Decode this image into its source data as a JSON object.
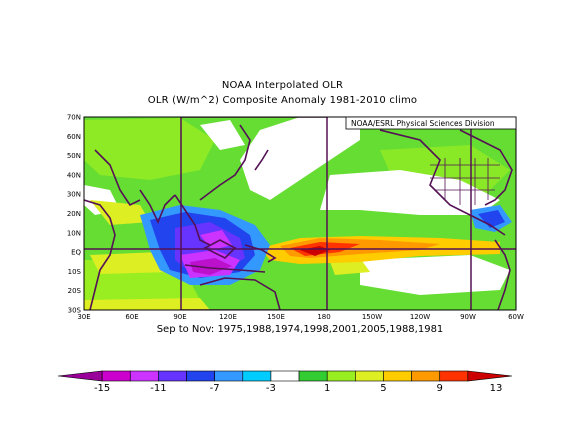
{
  "title": "NOAA Interpolated OLR",
  "subtitle": "OLR (W/m^2) Composite Anomaly 1981-2010 climo",
  "credit": "NOAA/ESRL Physical Sciences Division",
  "caption": "Sep to Nov: 1975,1988,1974,1998,2001,2005,1988,1981",
  "lat_labels": [
    "70N",
    "60N",
    "50N",
    "40N",
    "30N",
    "20N",
    "10N",
    "EQ",
    "10S",
    "20S",
    "30S"
  ],
  "lon_labels": [
    "30E",
    "60E",
    "90E",
    "120E",
    "150E",
    "180",
    "150W",
    "120W",
    "90W",
    "60W"
  ],
  "colorbar": {
    "labels": [
      "-15",
      "-11",
      "-7",
      "-3",
      "1",
      "5",
      "9",
      "13"
    ],
    "colors": [
      "#990099",
      "#cc00cc",
      "#cc33ff",
      "#6633ff",
      "#2244ee",
      "#3399ff",
      "#00ccff",
      "#ffffff",
      "#33cc33",
      "#99ee22",
      "#ddee22",
      "#ffcc00",
      "#ff9900",
      "#ff3300",
      "#cc0000"
    ]
  },
  "palette": {
    "green": "#55cc33",
    "light_green": "#99ee22",
    "yellow": "#ddee22",
    "orange": "#ffaa00",
    "red": "#dd2200",
    "white": "#ffffff",
    "blue": "#2244ee",
    "purple": "#8822dd",
    "magenta": "#bb11cc",
    "coast": "#551155"
  }
}
